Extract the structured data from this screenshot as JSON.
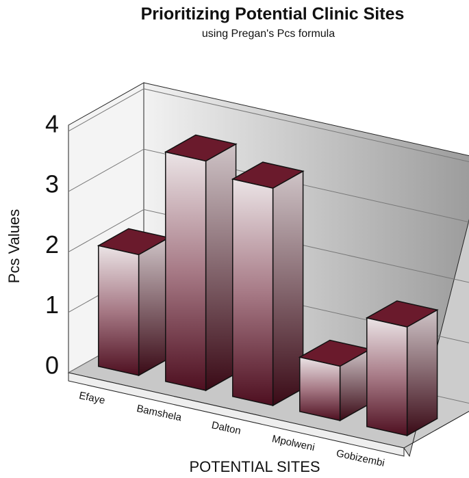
{
  "chart_data": {
    "type": "bar3d",
    "title": "Prioritizing Potential Clinic Sites",
    "subtitle": "using Pregan's  Pcs formula",
    "x_label": "POTENTIAL  SITES",
    "y_label": "Pcs  Values",
    "categories": [
      "Efaye",
      "Bamshela",
      "Dalton",
      "Mpolweni",
      "Gobizembi"
    ],
    "values": [
      2.0,
      3.8,
      3.6,
      0.9,
      1.8
    ],
    "color": "#6a1a2c",
    "ylim": [
      0,
      4.1
    ],
    "yticks": [
      0,
      1,
      2,
      3,
      4
    ],
    "grid": true
  }
}
